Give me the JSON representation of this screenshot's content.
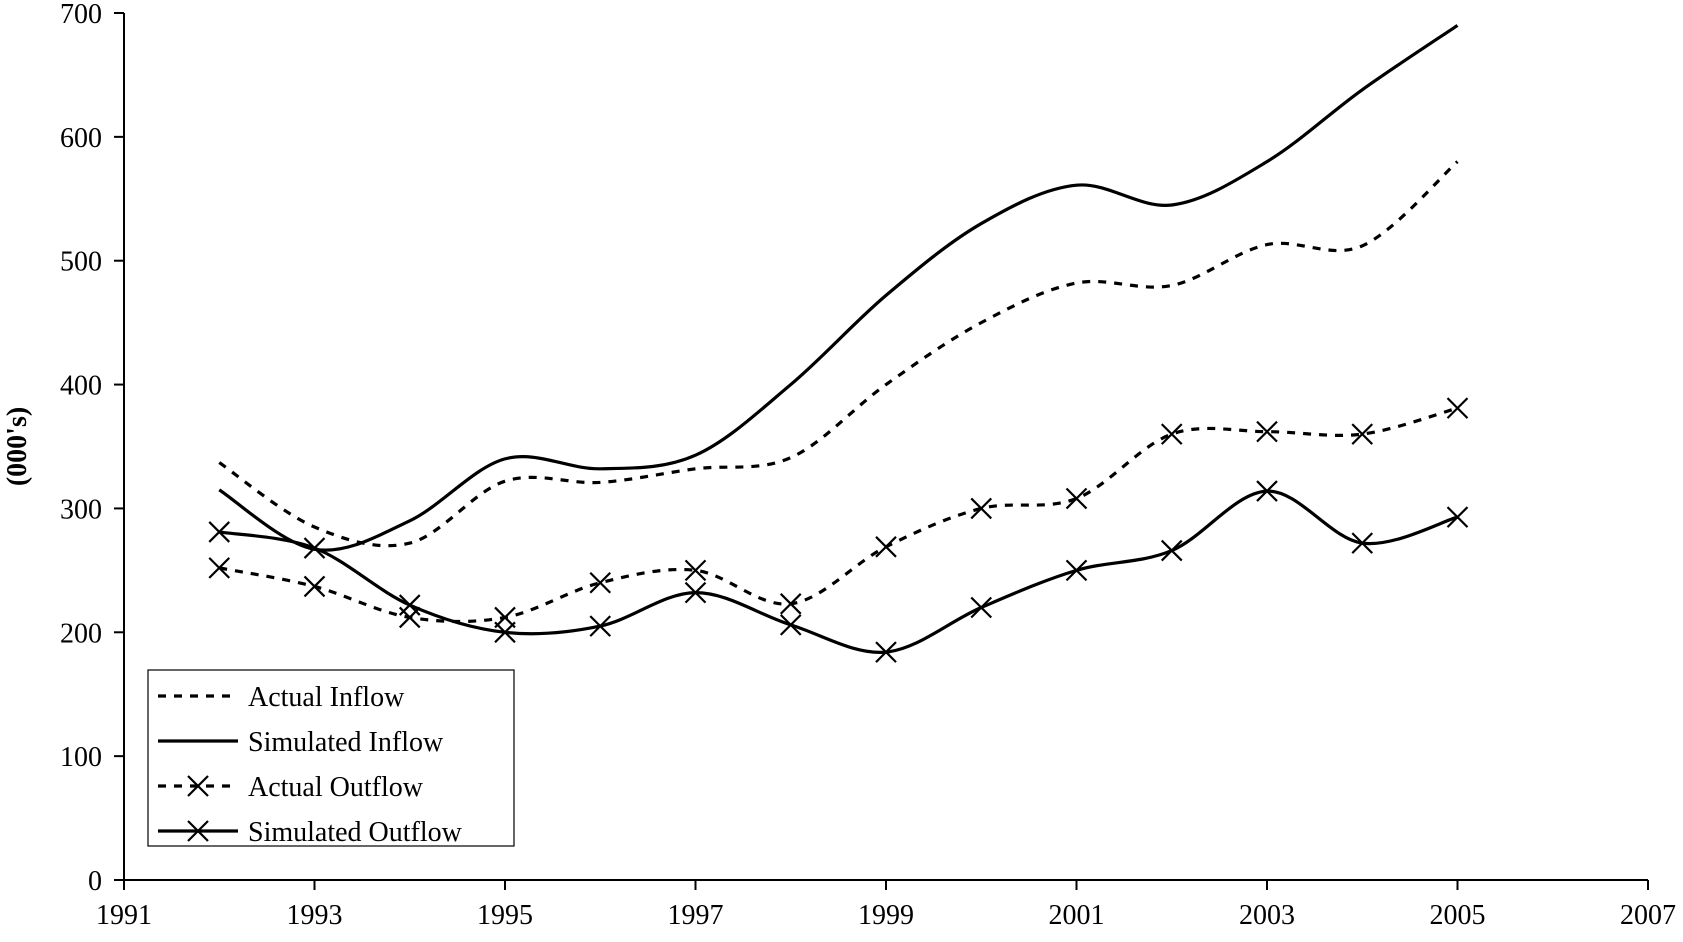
{
  "chart_data": {
    "type": "line",
    "title": "",
    "xlabel": "",
    "ylabel": "(000's)",
    "xlim": [
      1991,
      2007
    ],
    "ylim": [
      0,
      700
    ],
    "x_ticks": [
      1991,
      1993,
      1995,
      1997,
      1999,
      2001,
      2003,
      2005,
      2007
    ],
    "y_ticks": [
      0,
      100,
      200,
      300,
      400,
      500,
      600,
      700
    ],
    "grid": false,
    "legend_position": "bottom-left",
    "x": [
      1992,
      1993,
      1994,
      1995,
      1996,
      1997,
      1998,
      1999,
      2000,
      2001,
      2002,
      2003,
      2004,
      2005
    ],
    "series": [
      {
        "name": "Actual Inflow",
        "style": "dashed",
        "marker": "none",
        "values": [
          337,
          285,
          272,
          322,
          321,
          332,
          341,
          400,
          450,
          482,
          480,
          513,
          512,
          580
        ]
      },
      {
        "name": "Simulated Inflow",
        "style": "solid",
        "marker": "none",
        "values": [
          315,
          267,
          290,
          340,
          332,
          343,
          400,
          472,
          530,
          561,
          545,
          580,
          638,
          690
        ]
      },
      {
        "name": "Actual Outflow",
        "style": "dashed",
        "marker": "x",
        "values": [
          252,
          237,
          212,
          212,
          240,
          250,
          223,
          269,
          300,
          308,
          360,
          362,
          360,
          381
        ]
      },
      {
        "name": "Simulated Outflow",
        "style": "solid",
        "marker": "x",
        "values": [
          281,
          268,
          222,
          200,
          205,
          232,
          206,
          184,
          220,
          250,
          266,
          314,
          272,
          293
        ]
      }
    ]
  }
}
